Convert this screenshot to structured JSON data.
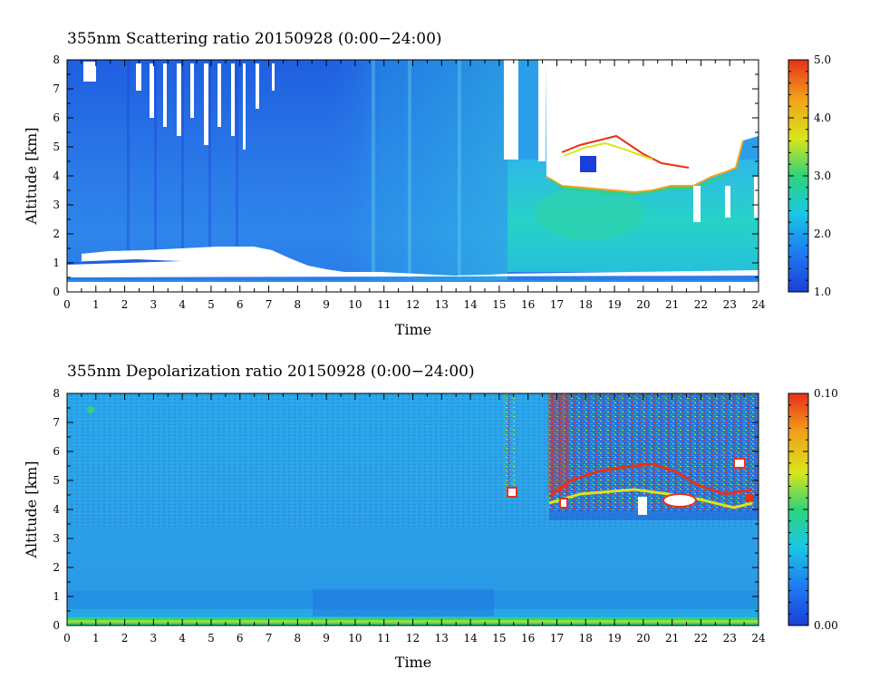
{
  "chart_data": [
    {
      "type": "heatmap",
      "title": "355nm Scattering ratio  20150928 (0:00−24:00)",
      "xlabel": "Time",
      "ylabel": "Altitude [km]",
      "xlim": [
        0,
        24
      ],
      "ylim": [
        0,
        8
      ],
      "x_ticks": [
        "0",
        "1",
        "2",
        "3",
        "4",
        "5",
        "6",
        "7",
        "8",
        "9",
        "10",
        "11",
        "12",
        "13",
        "14",
        "15",
        "16",
        "17",
        "18",
        "19",
        "20",
        "21",
        "22",
        "23",
        "24"
      ],
      "y_ticks": [
        "0",
        "1",
        "2",
        "3",
        "4",
        "5",
        "6",
        "7",
        "8"
      ],
      "colorbar": {
        "range": [
          1.0,
          5.0
        ],
        "tick_labels": [
          "1.0",
          "2.0",
          "3.0",
          "4.0",
          "5.0"
        ],
        "colors": [
          "#1a3fd8",
          "#1e78f0",
          "#19c8e6",
          "#2fd37a",
          "#d8e61a",
          "#f2a21a",
          "#e8301a"
        ]
      },
      "value_ranges": {
        "background_aerosol_0_1km": [
          1.6,
          2.2
        ],
        "boundary_layer_afternoon_15h_24h": [
          2.0,
          2.6
        ],
        "clear_air_1km_8km_morning": [
          1.1,
          1.5
        ],
        "cloud_edges_4km_6km_after_17h": [
          3.0,
          5.0
        ]
      }
    },
    {
      "type": "heatmap",
      "title": "355nm Depolarization ratio  20150928 (0:00−24:00)",
      "xlabel": "Time",
      "ylabel": "Altitude [km]",
      "xlim": [
        0,
        24
      ],
      "ylim": [
        0,
        8
      ],
      "x_ticks": [
        "0",
        "1",
        "2",
        "3",
        "4",
        "5",
        "6",
        "7",
        "8",
        "9",
        "10",
        "11",
        "12",
        "13",
        "14",
        "15",
        "16",
        "17",
        "18",
        "19",
        "20",
        "21",
        "22",
        "23",
        "24"
      ],
      "y_ticks": [
        "0",
        "1",
        "2",
        "3",
        "4",
        "5",
        "6",
        "7",
        "8"
      ],
      "colorbar": {
        "range": [
          0.0,
          0.1
        ],
        "tick_labels": [
          "0.00",
          "0.10"
        ],
        "colors": [
          "#1a3fd8",
          "#1e78f0",
          "#19c8e6",
          "#2fd37a",
          "#d8e61a",
          "#f2a21a",
          "#e8301a"
        ]
      },
      "value_ranges": {
        "clear_air_0_8km": [
          0.02,
          0.035
        ],
        "surface_layer_0_0.2km": [
          0.04,
          0.05
        ],
        "cloud_layer_3.5km_8km_after_15h": [
          0.05,
          0.1
        ]
      }
    }
  ]
}
